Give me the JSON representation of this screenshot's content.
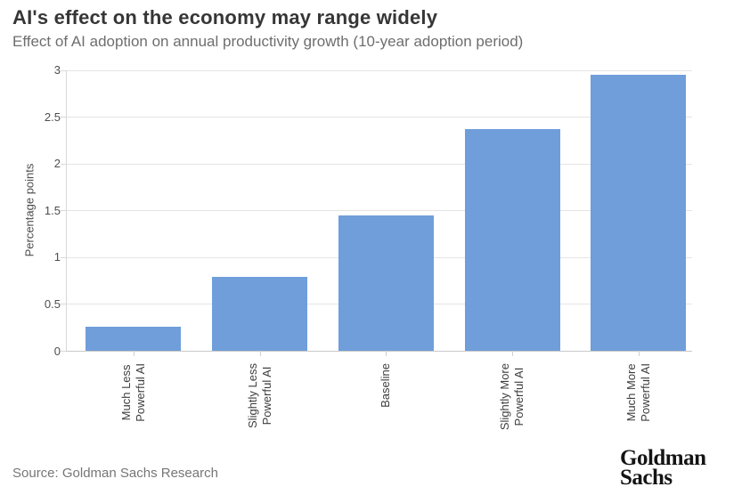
{
  "header": {
    "title": "AI's effect on the economy may range widely",
    "subtitle": "Effect of AI adoption on annual productivity growth (10-year adoption period)"
  },
  "chart_data": {
    "type": "bar",
    "title": "AI's effect on the economy may range widely",
    "subtitle": "Effect of AI adoption on annual productivity growth (10-year adoption period)",
    "ylabel": "Percentage points",
    "xlabel": "",
    "categories": [
      [
        "Much Less",
        "Powerful AI"
      ],
      [
        "Slightly Less",
        "Powerful AI"
      ],
      [
        "Baseline"
      ],
      [
        "Slightly More",
        "Powerful AI"
      ],
      [
        "Much More",
        "Powerful AI"
      ]
    ],
    "values": [
      0.26,
      0.79,
      1.45,
      2.37,
      2.95
    ],
    "ytick_labels": [
      "0",
      "0.5",
      "1",
      "1.5",
      "2",
      "2.5",
      "3"
    ],
    "yticks": [
      0,
      0.5,
      1,
      1.5,
      2,
      2.5,
      3
    ],
    "ylim": [
      0,
      3
    ],
    "grid": true,
    "legend": "none",
    "bar_color": "#6f9eda",
    "gridline_color": "#e4e4e4",
    "axis_color": "#c9c9c9"
  },
  "footer": {
    "source": "Source: Goldman Sachs Research",
    "logo_line1": "Goldman",
    "logo_line2": "Sachs"
  }
}
